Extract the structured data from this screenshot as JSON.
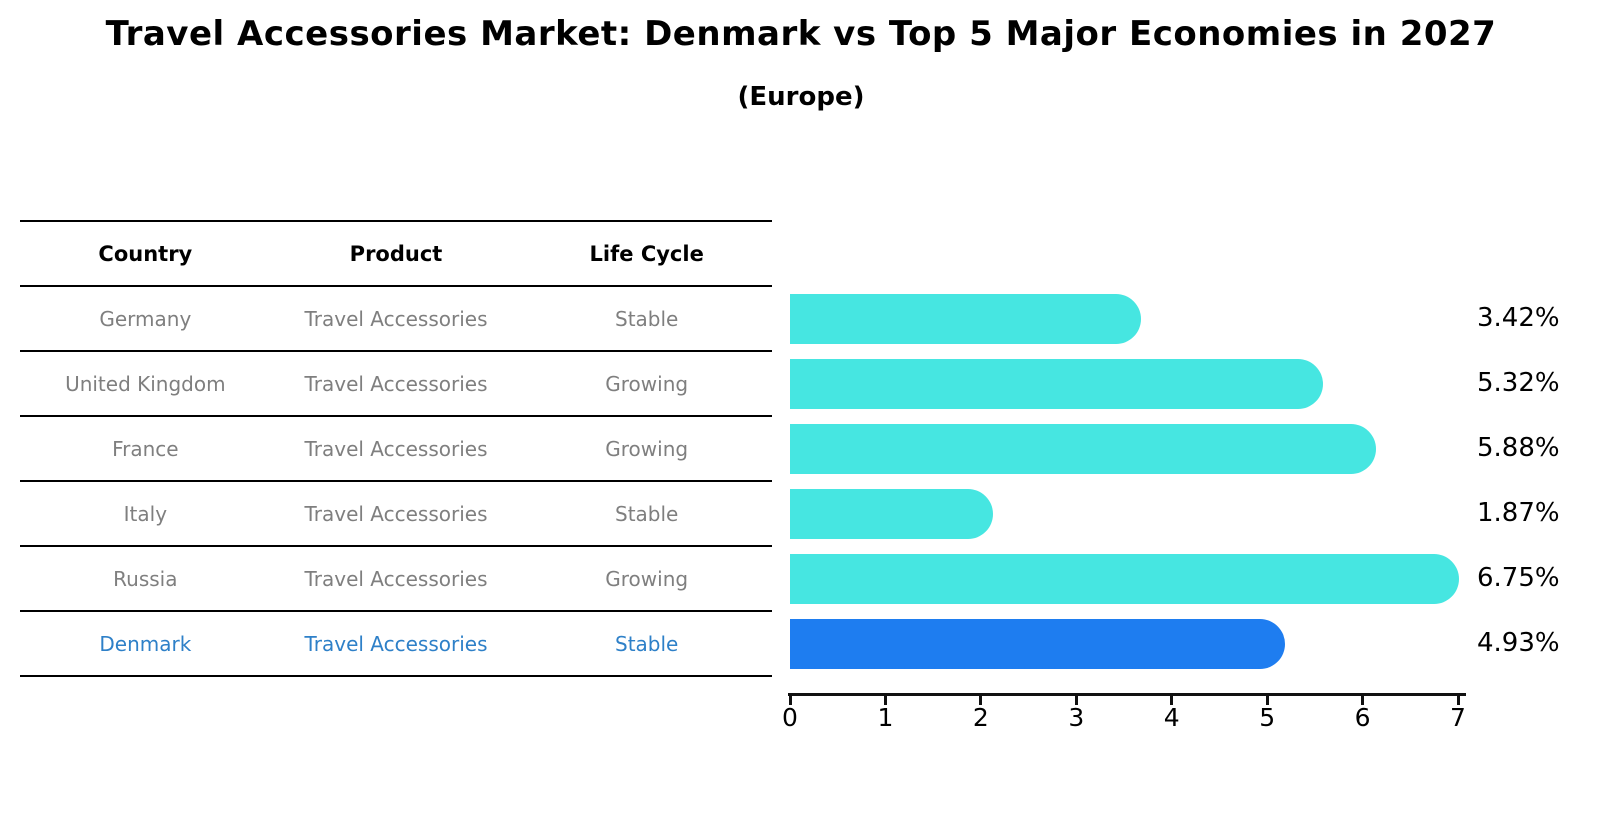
{
  "header": {
    "title": "Travel Accessories Market: Denmark vs Top 5 Major Economies in 2027",
    "subtitle": "(Europe)"
  },
  "table": {
    "headers": [
      "Country",
      "Product",
      "Life Cycle"
    ],
    "rows": [
      {
        "country": "Germany",
        "product": "Travel Accessories",
        "life_cycle": "Stable"
      },
      {
        "country": "United Kingdom",
        "product": "Travel Accessories",
        "life_cycle": "Growing"
      },
      {
        "country": "France",
        "product": "Travel Accessories",
        "life_cycle": "Growing"
      },
      {
        "country": "Italy",
        "product": "Travel Accessories",
        "life_cycle": "Stable"
      },
      {
        "country": "Russia",
        "product": "Travel Accessories",
        "life_cycle": "Growing"
      },
      {
        "country": "Denmark",
        "product": "Travel Accessories",
        "life_cycle": "Stable"
      }
    ],
    "highlight_row_index": 5,
    "body_text_color": "#7F7F7F",
    "highlight_text_color": "#2E80C8"
  },
  "chart_data": {
    "type": "bar",
    "orientation": "horizontal",
    "title": "Travel Accessories Market: Denmark vs Top 5 Major Economies in 2027",
    "subtitle": "(Europe)",
    "categories": [
      "Germany",
      "United Kingdom",
      "France",
      "Italy",
      "Russia",
      "Denmark"
    ],
    "values": [
      3.42,
      5.32,
      5.88,
      1.87,
      6.75,
      4.93
    ],
    "value_labels": [
      "3.42%",
      "5.32%",
      "5.88%",
      "1.87%",
      "6.75%",
      "4.93%"
    ],
    "xlim": [
      0,
      7
    ],
    "xtick_labels": [
      "0",
      "1",
      "2",
      "3",
      "4",
      "5",
      "6",
      "7"
    ],
    "grid": false,
    "legend": false,
    "highlight_index": 5,
    "bar_color": "#46E6E1",
    "highlight_bar_color": "#1E7DF0",
    "highlight_border_color": "#1E7DF0"
  }
}
